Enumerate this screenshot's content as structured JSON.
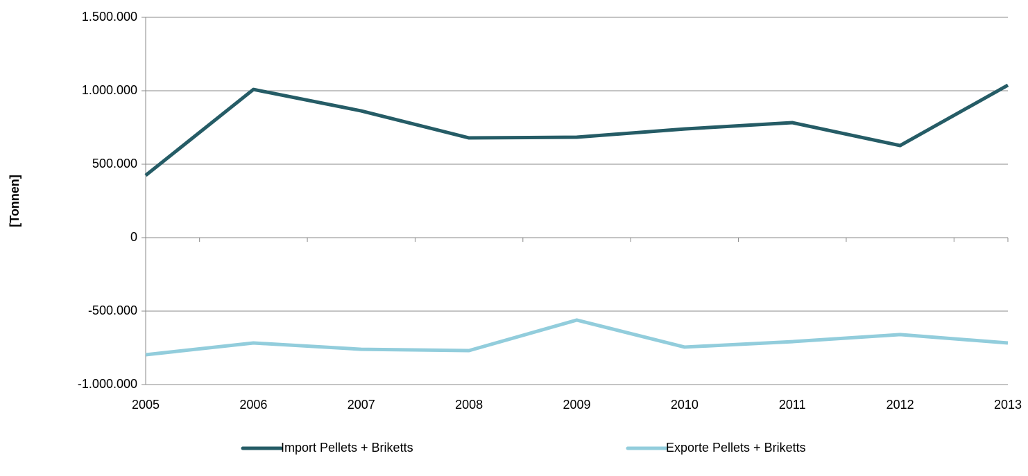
{
  "chart_data": {
    "type": "line",
    "y_label": "[Tonnen]",
    "categories": [
      "2005",
      "2006",
      "2007",
      "2008",
      "2009",
      "2010",
      "2011",
      "2012",
      "2013"
    ],
    "series": [
      {
        "name": "Import Pellets + Briketts",
        "color": "#255c66",
        "values": [
          424000,
          1009000,
          863000,
          679000,
          684000,
          740000,
          783000,
          627000,
          1038000
        ]
      },
      {
        "name": "Exporte Pellets + Briketts",
        "color": "#92cddc",
        "values": [
          -797000,
          -717000,
          -760000,
          -769000,
          -561000,
          -745000,
          -708000,
          -660000,
          -717000
        ]
      }
    ],
    "ylim": [
      -1000000,
      1500000
    ],
    "yticks": [
      {
        "value": -1000000,
        "label": "-1.000.000"
      },
      {
        "value": -500000,
        "label": "-500.000"
      },
      0,
      {
        "value": 500000,
        "label": "500.000"
      },
      {
        "value": 1000000,
        "label": "1.000.000"
      },
      {
        "value": 1500000,
        "label": "1.500.000"
      }
    ],
    "grid": true,
    "legend": "bottom"
  }
}
